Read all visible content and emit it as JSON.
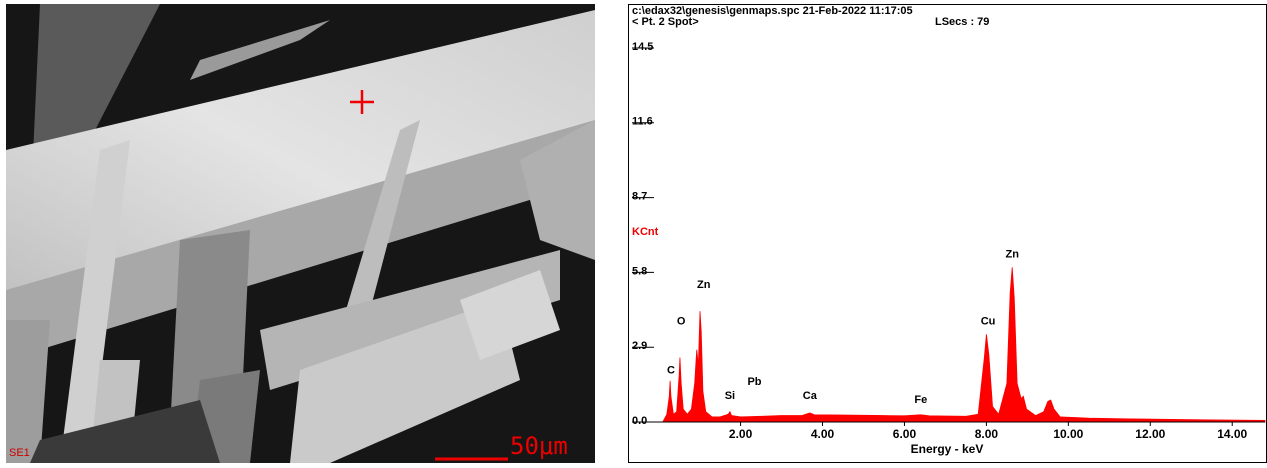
{
  "image": {
    "detector_label": "SE1",
    "scale_label": "50μm"
  },
  "chart_data": {
    "type": "area",
    "title": "c:\\edax32\\genesis\\genmaps.spc  21-Feb-2022 11:17:05",
    "subtitle": "< Pt.  2 Spot>",
    "header_right": "LSecs : 79",
    "ylabel": "KCnt",
    "xlabel": "Energy - keV",
    "color": "#ff0000",
    "xlim": [
      -0.65,
      14.8
    ],
    "ylim": [
      0,
      14.5
    ],
    "xticks": [
      {
        "value": 2,
        "label": "2.00"
      },
      {
        "value": 4,
        "label": "4.00"
      },
      {
        "value": 6,
        "label": "6.00"
      },
      {
        "value": 8,
        "label": "8.00"
      },
      {
        "value": 10,
        "label": "10.00"
      },
      {
        "value": 12,
        "label": "12.00"
      },
      {
        "value": 14,
        "label": "14.00"
      }
    ],
    "yticks": [
      {
        "value": 0,
        "label": "0.0"
      },
      2.9,
      5.8,
      8.7,
      11.6,
      14.5
    ],
    "x": [
      0.1,
      0.2,
      0.26,
      0.28,
      0.3,
      0.36,
      0.44,
      0.5,
      0.52,
      0.55,
      0.6,
      0.7,
      0.8,
      0.88,
      0.93,
      0.97,
      1.01,
      1.04,
      1.08,
      1.15,
      1.3,
      1.5,
      1.7,
      1.74,
      1.78,
      2.0,
      2.5,
      3.0,
      3.5,
      3.69,
      3.8,
      4.5,
      5.0,
      5.5,
      6.0,
      6.4,
      6.6,
      7.0,
      7.5,
      7.8,
      7.95,
      8.0,
      8.06,
      8.15,
      8.3,
      8.5,
      8.58,
      8.63,
      8.68,
      8.75,
      8.85,
      8.9,
      8.98,
      9.2,
      9.4,
      9.5,
      9.57,
      9.65,
      9.8,
      10.5,
      11.5,
      12.5,
      13.5,
      14.8
    ],
    "values": [
      0,
      0.3,
      1.0,
      1.6,
      1.0,
      0.3,
      0.4,
      1.8,
      2.5,
      1.5,
      0.5,
      0.3,
      0.5,
      1.5,
      2.8,
      2.2,
      4.3,
      3.5,
      1.2,
      0.4,
      0.2,
      0.2,
      0.3,
      0.4,
      0.25,
      0.2,
      0.22,
      0.25,
      0.25,
      0.35,
      0.28,
      0.27,
      0.26,
      0.25,
      0.24,
      0.28,
      0.24,
      0.23,
      0.22,
      0.3,
      2.5,
      3.4,
      2.6,
      0.6,
      0.3,
      1.5,
      5.0,
      6.0,
      4.8,
      1.5,
      0.9,
      1.0,
      0.5,
      0.25,
      0.4,
      0.8,
      0.85,
      0.5,
      0.2,
      0.15,
      0.12,
      0.1,
      0.08,
      0.06
    ],
    "annotations": [
      {
        "text": "C",
        "x": 0.3,
        "y": 2.0
      },
      {
        "text": "O",
        "x": 0.55,
        "y": 3.9
      },
      {
        "text": "Zn",
        "x": 1.1,
        "y": 5.3
      },
      {
        "text": "Si",
        "x": 1.74,
        "y": 1.0
      },
      {
        "text": "Pb",
        "x": 2.34,
        "y": 1.55
      },
      {
        "text": "Ca",
        "x": 3.69,
        "y": 1.0
      },
      {
        "text": "Fe",
        "x": 6.4,
        "y": 0.85
      },
      {
        "text": "Cu",
        "x": 8.04,
        "y": 3.9
      },
      {
        "text": "Zn",
        "x": 8.63,
        "y": 6.5
      }
    ]
  }
}
